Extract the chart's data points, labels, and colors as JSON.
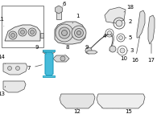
{
  "bg": "#ffffff",
  "lc": "#4a4a4a",
  "hc": "#3cb8d8",
  "lbl": "#000000",
  "fs": 5.0,
  "fig_w": 2.0,
  "fig_h": 1.47,
  "dpi": 100
}
